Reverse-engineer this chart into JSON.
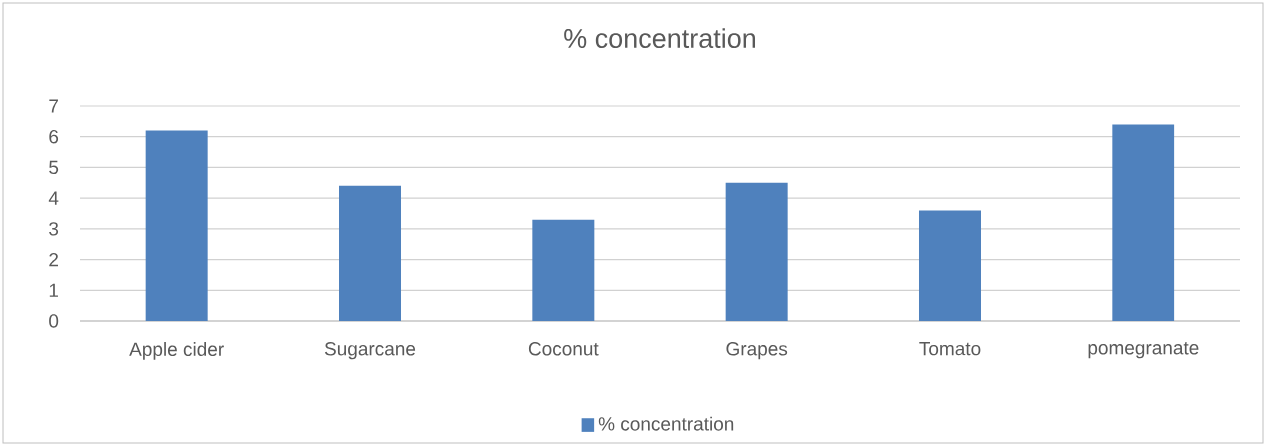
{
  "chart_data": {
    "type": "bar",
    "title": "% concentration",
    "categories": [
      "Apple cider",
      "Sugarcane",
      "Coconut",
      "Grapes",
      "Tomato",
      "pomegranate"
    ],
    "series": [
      {
        "name": "% concentration",
        "color": "#4f81bd",
        "values": [
          6.2,
          4.4,
          3.3,
          4.5,
          3.6,
          6.4
        ]
      }
    ],
    "ylim": [
      0,
      7
    ],
    "yticks": [
      0,
      1,
      2,
      3,
      4,
      5,
      6,
      7
    ],
    "grid": "y",
    "legend": "bottom"
  }
}
